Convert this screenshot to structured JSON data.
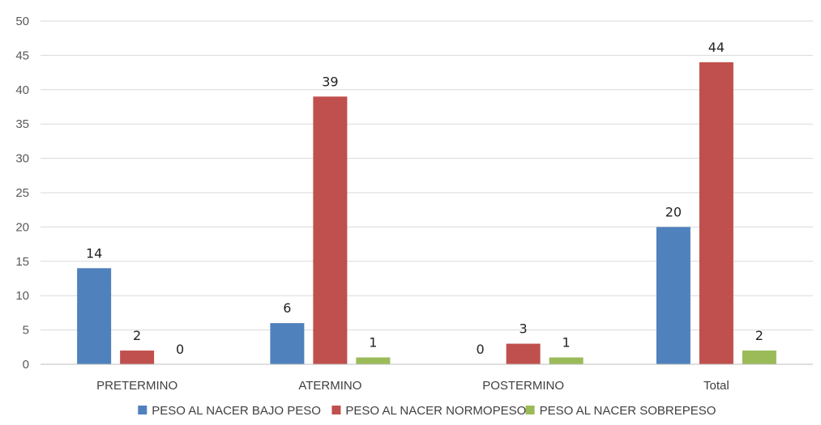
{
  "chart_data": {
    "type": "bar",
    "title": "",
    "xlabel": "",
    "ylabel": "",
    "categories": [
      "PRETERMINO",
      "ATERMINO",
      "POSTERMINO",
      "Total"
    ],
    "series": [
      {
        "name": "PESO AL NACER BAJO PESO",
        "color": "#4f81bd",
        "values": [
          14,
          6,
          0,
          20
        ]
      },
      {
        "name": "PESO AL NACER NORMOPESO",
        "color": "#c0504d",
        "values": [
          2,
          39,
          3,
          44
        ]
      },
      {
        "name": "PESO AL NACER SOBREPESO",
        "color": "#9bbb59",
        "values": [
          0,
          1,
          1,
          2
        ]
      }
    ],
    "ylim": [
      0,
      50
    ],
    "yticks": [
      0,
      5,
      10,
      15,
      20,
      25,
      30,
      35,
      40,
      45,
      50
    ],
    "grid": true,
    "legend_position": "bottom",
    "data_labels": true
  }
}
